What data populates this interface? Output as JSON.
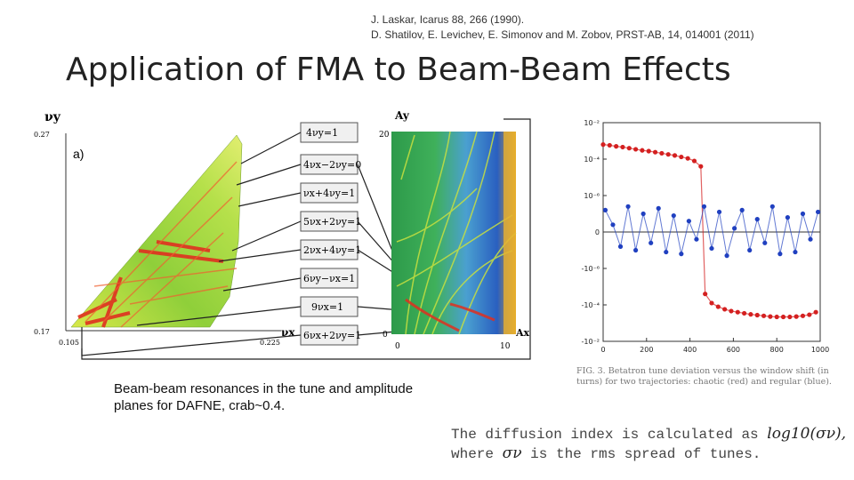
{
  "references": {
    "line1": "J. Laskar, Icarus 88, 266 (1990).",
    "line2": "D. Shatilov, E. Levichev, E. Simonov and M. Zobov, PRST-AB, 14, 014001 (2011)"
  },
  "slide_title": "Application of FMA to Beam-Beam Effects",
  "left_figure": {
    "panel_label": "a)",
    "tune_plot": {
      "y_axis_label": "νy",
      "x_axis_label": "νx",
      "y_max": "0.27",
      "y_min": "0.17",
      "x_min": "0.105",
      "x_max": "0.225"
    },
    "amplitude_plot": {
      "y_axis_label": "Ay",
      "x_axis_label": "Ax",
      "y_max": "20",
      "origin": "0",
      "x_zero": "0",
      "x_max": "10"
    },
    "resonances": [
      "4νy=1",
      "4νx−2νy=0",
      "νx+4νy=1",
      "5νx+2νy=1",
      "2νx+4νy=1",
      "6νy−νx=1",
      "9νx=1",
      "6νx+2νy=1"
    ]
  },
  "caption": {
    "line1": "Beam-beam resonances in the tune and amplitude",
    "line2": "planes for DAFNE, crab~0.4."
  },
  "chart_data": {
    "type": "scatter",
    "title": "",
    "xlabel": "",
    "ylabel": "",
    "x_ticks": [
      "0",
      "200",
      "400",
      "600",
      "800",
      "1000"
    ],
    "y_ticks": [
      "10⁻²",
      "10⁻⁴",
      "10⁻⁶",
      "0",
      "-10⁻⁶",
      "-10⁻⁴",
      "-10⁻²"
    ],
    "xlim": [
      0,
      1000
    ],
    "ylim": [
      -3,
      3
    ],
    "series": [
      {
        "name": "chaotic",
        "color": "#d42020",
        "x": [
          0,
          30,
          60,
          90,
          120,
          150,
          180,
          210,
          240,
          270,
          300,
          330,
          360,
          390,
          420,
          450,
          470,
          500,
          530,
          560,
          590,
          620,
          650,
          680,
          710,
          740,
          770,
          800,
          830,
          860,
          890,
          920,
          950,
          980
        ],
        "y": [
          2.4,
          2.38,
          2.35,
          2.33,
          2.3,
          2.27,
          2.24,
          2.22,
          2.19,
          2.16,
          2.13,
          2.1,
          2.06,
          2.02,
          1.95,
          1.8,
          -1.7,
          -1.95,
          -2.05,
          -2.12,
          -2.17,
          -2.2,
          -2.23,
          -2.26,
          -2.28,
          -2.3,
          -2.32,
          -2.33,
          -2.33,
          -2.33,
          -2.32,
          -2.3,
          -2.27,
          -2.2
        ]
      },
      {
        "name": "regular",
        "color": "#2040c0",
        "x": [
          10,
          45,
          80,
          115,
          150,
          185,
          220,
          255,
          290,
          325,
          360,
          395,
          430,
          465,
          500,
          535,
          570,
          605,
          640,
          675,
          710,
          745,
          780,
          815,
          850,
          885,
          920,
          955,
          990
        ],
        "y": [
          0.6,
          0.2,
          -0.4,
          0.7,
          -0.5,
          0.5,
          -0.3,
          0.65,
          -0.55,
          0.45,
          -0.6,
          0.3,
          -0.2,
          0.7,
          -0.45,
          0.55,
          -0.65,
          0.1,
          0.6,
          -0.5,
          0.35,
          -0.3,
          0.7,
          -0.6,
          0.4,
          -0.55,
          0.5,
          -0.2,
          0.55
        ]
      }
    ]
  },
  "fig3_caption": {
    "line1": "FIG. 3.   Betatron tune deviation versus the window shift (in",
    "line2": "turns) for two trajectories: chaotic (red) and regular (blue)."
  },
  "diffusion": {
    "line1a": "The diffusion index is calculated as ",
    "formula": "log10(σν),",
    "line2a": "where ",
    "sigma": "σν",
    "line2b": " is the rms spread of tunes."
  }
}
